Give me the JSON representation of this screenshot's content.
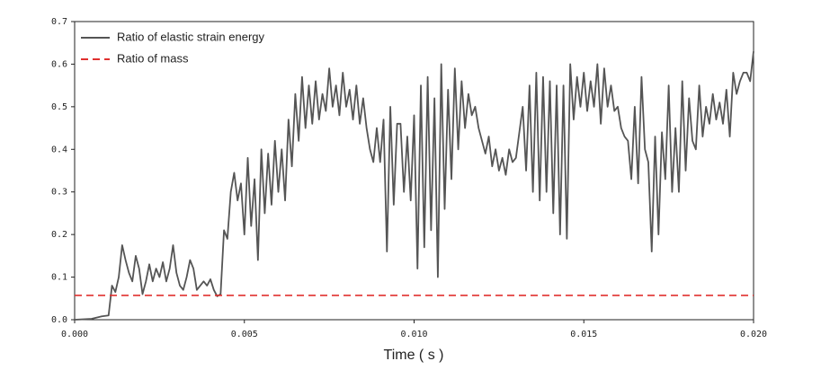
{
  "chart_data": {
    "type": "line",
    "xlabel": "Time ( s )",
    "xlim": [
      0,
      0.02
    ],
    "ylim": [
      0,
      0.7
    ],
    "xticks": [
      {
        "value": 0,
        "label": "0.000"
      },
      0.005,
      {
        "value": 0.01,
        "label": "0.010"
      },
      0.015,
      {
        "value": 0.02,
        "label": "0.020"
      }
    ],
    "yticks": [
      {
        "value": 0,
        "label": "0.0"
      },
      0.1,
      0.2,
      0.3,
      0.4,
      0.5,
      0.6,
      0.7
    ],
    "legend": "upper left",
    "series": [
      {
        "name": "Ratio of elastic strain energy",
        "color": "#555555",
        "style": "solid",
        "x": [
          0,
          0.0005,
          0.0008,
          0.001,
          0.0011,
          0.0012,
          0.0013,
          0.0014,
          0.0015,
          0.0016,
          0.0017,
          0.0018,
          0.0019,
          0.002,
          0.0021,
          0.0022,
          0.0023,
          0.0024,
          0.0025,
          0.0026,
          0.0027,
          0.0028,
          0.0029,
          0.003,
          0.0031,
          0.0032,
          0.0033,
          0.0034,
          0.0035,
          0.0036,
          0.0037,
          0.0038,
          0.0039,
          0.004,
          0.0041,
          0.0042,
          0.0043,
          0.0044,
          0.0045,
          0.0046,
          0.0047,
          0.0048,
          0.0049,
          0.005,
          0.0051,
          0.0052,
          0.0053,
          0.0054,
          0.0055,
          0.0056,
          0.0057,
          0.0058,
          0.0059,
          0.006,
          0.0061,
          0.0062,
          0.0063,
          0.0064,
          0.0065,
          0.0066,
          0.0067,
          0.0068,
          0.0069,
          0.007,
          0.0071,
          0.0072,
          0.0073,
          0.0074,
          0.0075,
          0.0076,
          0.0077,
          0.0078,
          0.0079,
          0.008,
          0.0081,
          0.0082,
          0.0083,
          0.0084,
          0.0085,
          0.0086,
          0.0087,
          0.0088,
          0.0089,
          0.009,
          0.0091,
          0.0092,
          0.0093,
          0.0094,
          0.0095,
          0.0096,
          0.0097,
          0.0098,
          0.0099,
          0.01,
          0.0101,
          0.0102,
          0.0103,
          0.0104,
          0.0105,
          0.0106,
          0.0107,
          0.0108,
          0.0109,
          0.011,
          0.0111,
          0.0112,
          0.0113,
          0.0114,
          0.0115,
          0.0116,
          0.0117,
          0.0118,
          0.0119,
          0.012,
          0.0121,
          0.0122,
          0.0123,
          0.0124,
          0.0125,
          0.0126,
          0.0127,
          0.0128,
          0.0129,
          0.013,
          0.0131,
          0.0132,
          0.0133,
          0.0134,
          0.0135,
          0.0136,
          0.0137,
          0.0138,
          0.0139,
          0.014,
          0.0141,
          0.0142,
          0.0143,
          0.0144,
          0.0145,
          0.0146,
          0.0147,
          0.0148,
          0.0149,
          0.015,
          0.0151,
          0.0152,
          0.0153,
          0.0154,
          0.0155,
          0.0156,
          0.0157,
          0.0158,
          0.0159,
          0.016,
          0.0161,
          0.0162,
          0.0163,
          0.0164,
          0.0165,
          0.0166,
          0.0167,
          0.0168,
          0.0169,
          0.017,
          0.0171,
          0.0172,
          0.0173,
          0.0174,
          0.0175,
          0.0176,
          0.0177,
          0.0178,
          0.0179,
          0.018,
          0.0181,
          0.0182,
          0.0183,
          0.0184,
          0.0185,
          0.0186,
          0.0187,
          0.0188,
          0.0189,
          0.019,
          0.0191,
          0.0192,
          0.0193,
          0.0194,
          0.0195,
          0.0196,
          0.0197,
          0.0198,
          0.0199,
          0.02
        ],
        "values": [
          0,
          0.002,
          0.008,
          0.01,
          0.08,
          0.065,
          0.1,
          0.175,
          0.14,
          0.11,
          0.09,
          0.15,
          0.12,
          0.06,
          0.09,
          0.13,
          0.09,
          0.12,
          0.1,
          0.135,
          0.09,
          0.12,
          0.175,
          0.11,
          0.08,
          0.07,
          0.1,
          0.14,
          0.12,
          0.07,
          0.08,
          0.09,
          0.08,
          0.095,
          0.07,
          0.055,
          0.06,
          0.21,
          0.19,
          0.3,
          0.345,
          0.28,
          0.32,
          0.2,
          0.38,
          0.22,
          0.33,
          0.14,
          0.4,
          0.25,
          0.39,
          0.27,
          0.42,
          0.3,
          0.4,
          0.28,
          0.47,
          0.36,
          0.53,
          0.42,
          0.57,
          0.45,
          0.55,
          0.46,
          0.56,
          0.47,
          0.53,
          0.49,
          0.59,
          0.5,
          0.55,
          0.48,
          0.58,
          0.5,
          0.54,
          0.47,
          0.55,
          0.46,
          0.52,
          0.45,
          0.4,
          0.37,
          0.45,
          0.37,
          0.47,
          0.16,
          0.5,
          0.27,
          0.46,
          0.46,
          0.3,
          0.43,
          0.28,
          0.48,
          0.12,
          0.55,
          0.17,
          0.57,
          0.21,
          0.52,
          0.1,
          0.6,
          0.26,
          0.54,
          0.33,
          0.59,
          0.4,
          0.56,
          0.45,
          0.53,
          0.48,
          0.5,
          0.45,
          0.42,
          0.39,
          0.43,
          0.36,
          0.4,
          0.35,
          0.38,
          0.34,
          0.4,
          0.37,
          0.38,
          0.44,
          0.5,
          0.35,
          0.55,
          0.3,
          0.58,
          0.28,
          0.57,
          0.3,
          0.56,
          0.25,
          0.55,
          0.2,
          0.55,
          0.19,
          0.6,
          0.47,
          0.57,
          0.5,
          0.58,
          0.49,
          0.56,
          0.5,
          0.6,
          0.46,
          0.59,
          0.5,
          0.55,
          0.49,
          0.5,
          0.45,
          0.43,
          0.42,
          0.33,
          0.5,
          0.32,
          0.57,
          0.4,
          0.37,
          0.16,
          0.43,
          0.2,
          0.44,
          0.33,
          0.55,
          0.3,
          0.45,
          0.3,
          0.56,
          0.35,
          0.52,
          0.42,
          0.4,
          0.55,
          0.43,
          0.5,
          0.46,
          0.53,
          0.47,
          0.51,
          0.46,
          0.54,
          0.43,
          0.58,
          0.53,
          0.56,
          0.58,
          0.58,
          0.56,
          0.63
        ]
      },
      {
        "name": "Ratio of mass",
        "color": "#e0302f",
        "style": "dashed",
        "x": [
          0,
          0.02
        ],
        "values": [
          0.057,
          0.057
        ]
      }
    ]
  }
}
